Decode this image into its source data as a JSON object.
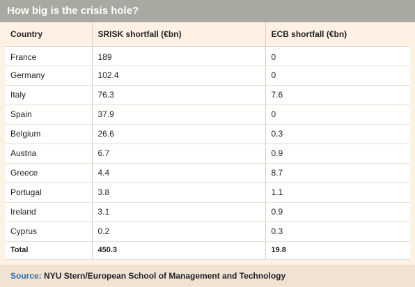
{
  "chart_data": {
    "type": "table",
    "title": "How big is the crisis hole?",
    "columns": [
      "Country",
      "SRISK shortfall (€bn)",
      "ECB shortfall (€bn)"
    ],
    "rows": [
      [
        "France",
        "189",
        "0"
      ],
      [
        "Germany",
        "102.4",
        "0"
      ],
      [
        "Italy",
        "76.3",
        "7.6"
      ],
      [
        "Spain",
        "37.9",
        "0"
      ],
      [
        "Belgium",
        "26.6",
        "0.3"
      ],
      [
        "Austria",
        "6.7",
        "0.9"
      ],
      [
        "Greece",
        "4.4",
        "8.7"
      ],
      [
        "Portugal",
        "3.8",
        "1.1"
      ],
      [
        "Ireland",
        "3.1",
        "0.9"
      ],
      [
        "Cyprus",
        "0.2",
        "0.3"
      ]
    ],
    "total": [
      "Total",
      "450.3",
      "19.8"
    ]
  },
  "source": {
    "label": "Source:",
    "text": " NYU Stern/European School of Management and Technology"
  },
  "colors": {
    "title_bar": "#a8a9a0",
    "panel_bg": "#fff1e4",
    "source_label": "#2a6db0"
  }
}
